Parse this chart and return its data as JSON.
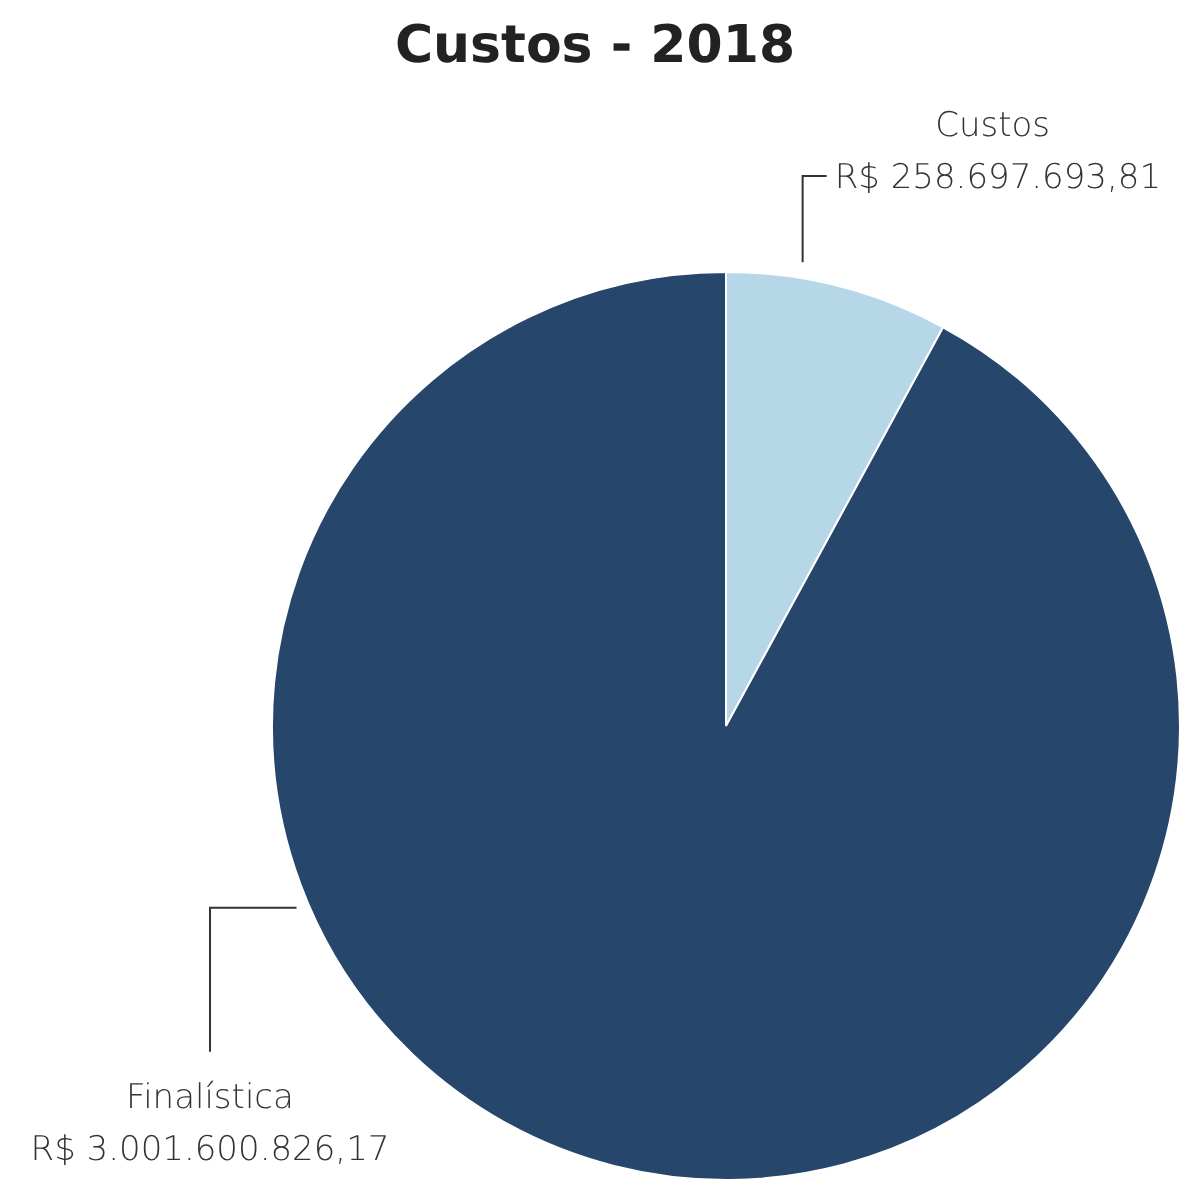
{
  "chart_data": {
    "type": "pie",
    "title": "Custos - 2018",
    "categories": [
      "Custos",
      "Finalística"
    ],
    "values": [
      258697693.81,
      3001600826.17
    ],
    "colors": [
      "#b6d7e8",
      "#26466b"
    ],
    "value_labels": [
      "R$ 258.697.693,81",
      "R$ 3.001.600.826,17"
    ]
  }
}
